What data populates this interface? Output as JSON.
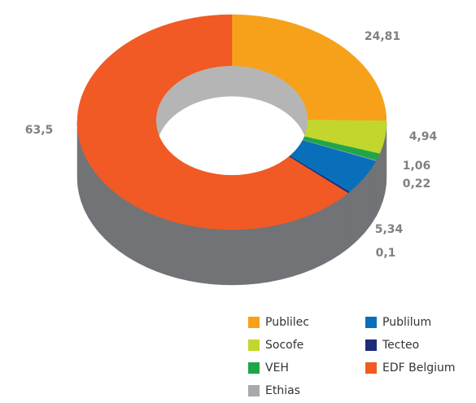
{
  "chart_data": {
    "type": "donut3d",
    "categories": [
      "Publilec",
      "Socofe",
      "VEH",
      "Ethias",
      "Publilum",
      "Tecteo",
      "EDF Belgium"
    ],
    "values": [
      24.81,
      4.94,
      1.06,
      0.1,
      5.34,
      0.22,
      63.5
    ],
    "value_labels": [
      "24,81",
      "4,94",
      "1,06",
      "0,1",
      "5,34",
      "0,22",
      "63,5"
    ],
    "colors": [
      "#f7a11a",
      "#c2d62e",
      "#1fa64a",
      "#a7a9ac",
      "#0a6fba",
      "#1d2b7a",
      "#f15a24"
    ]
  }
}
